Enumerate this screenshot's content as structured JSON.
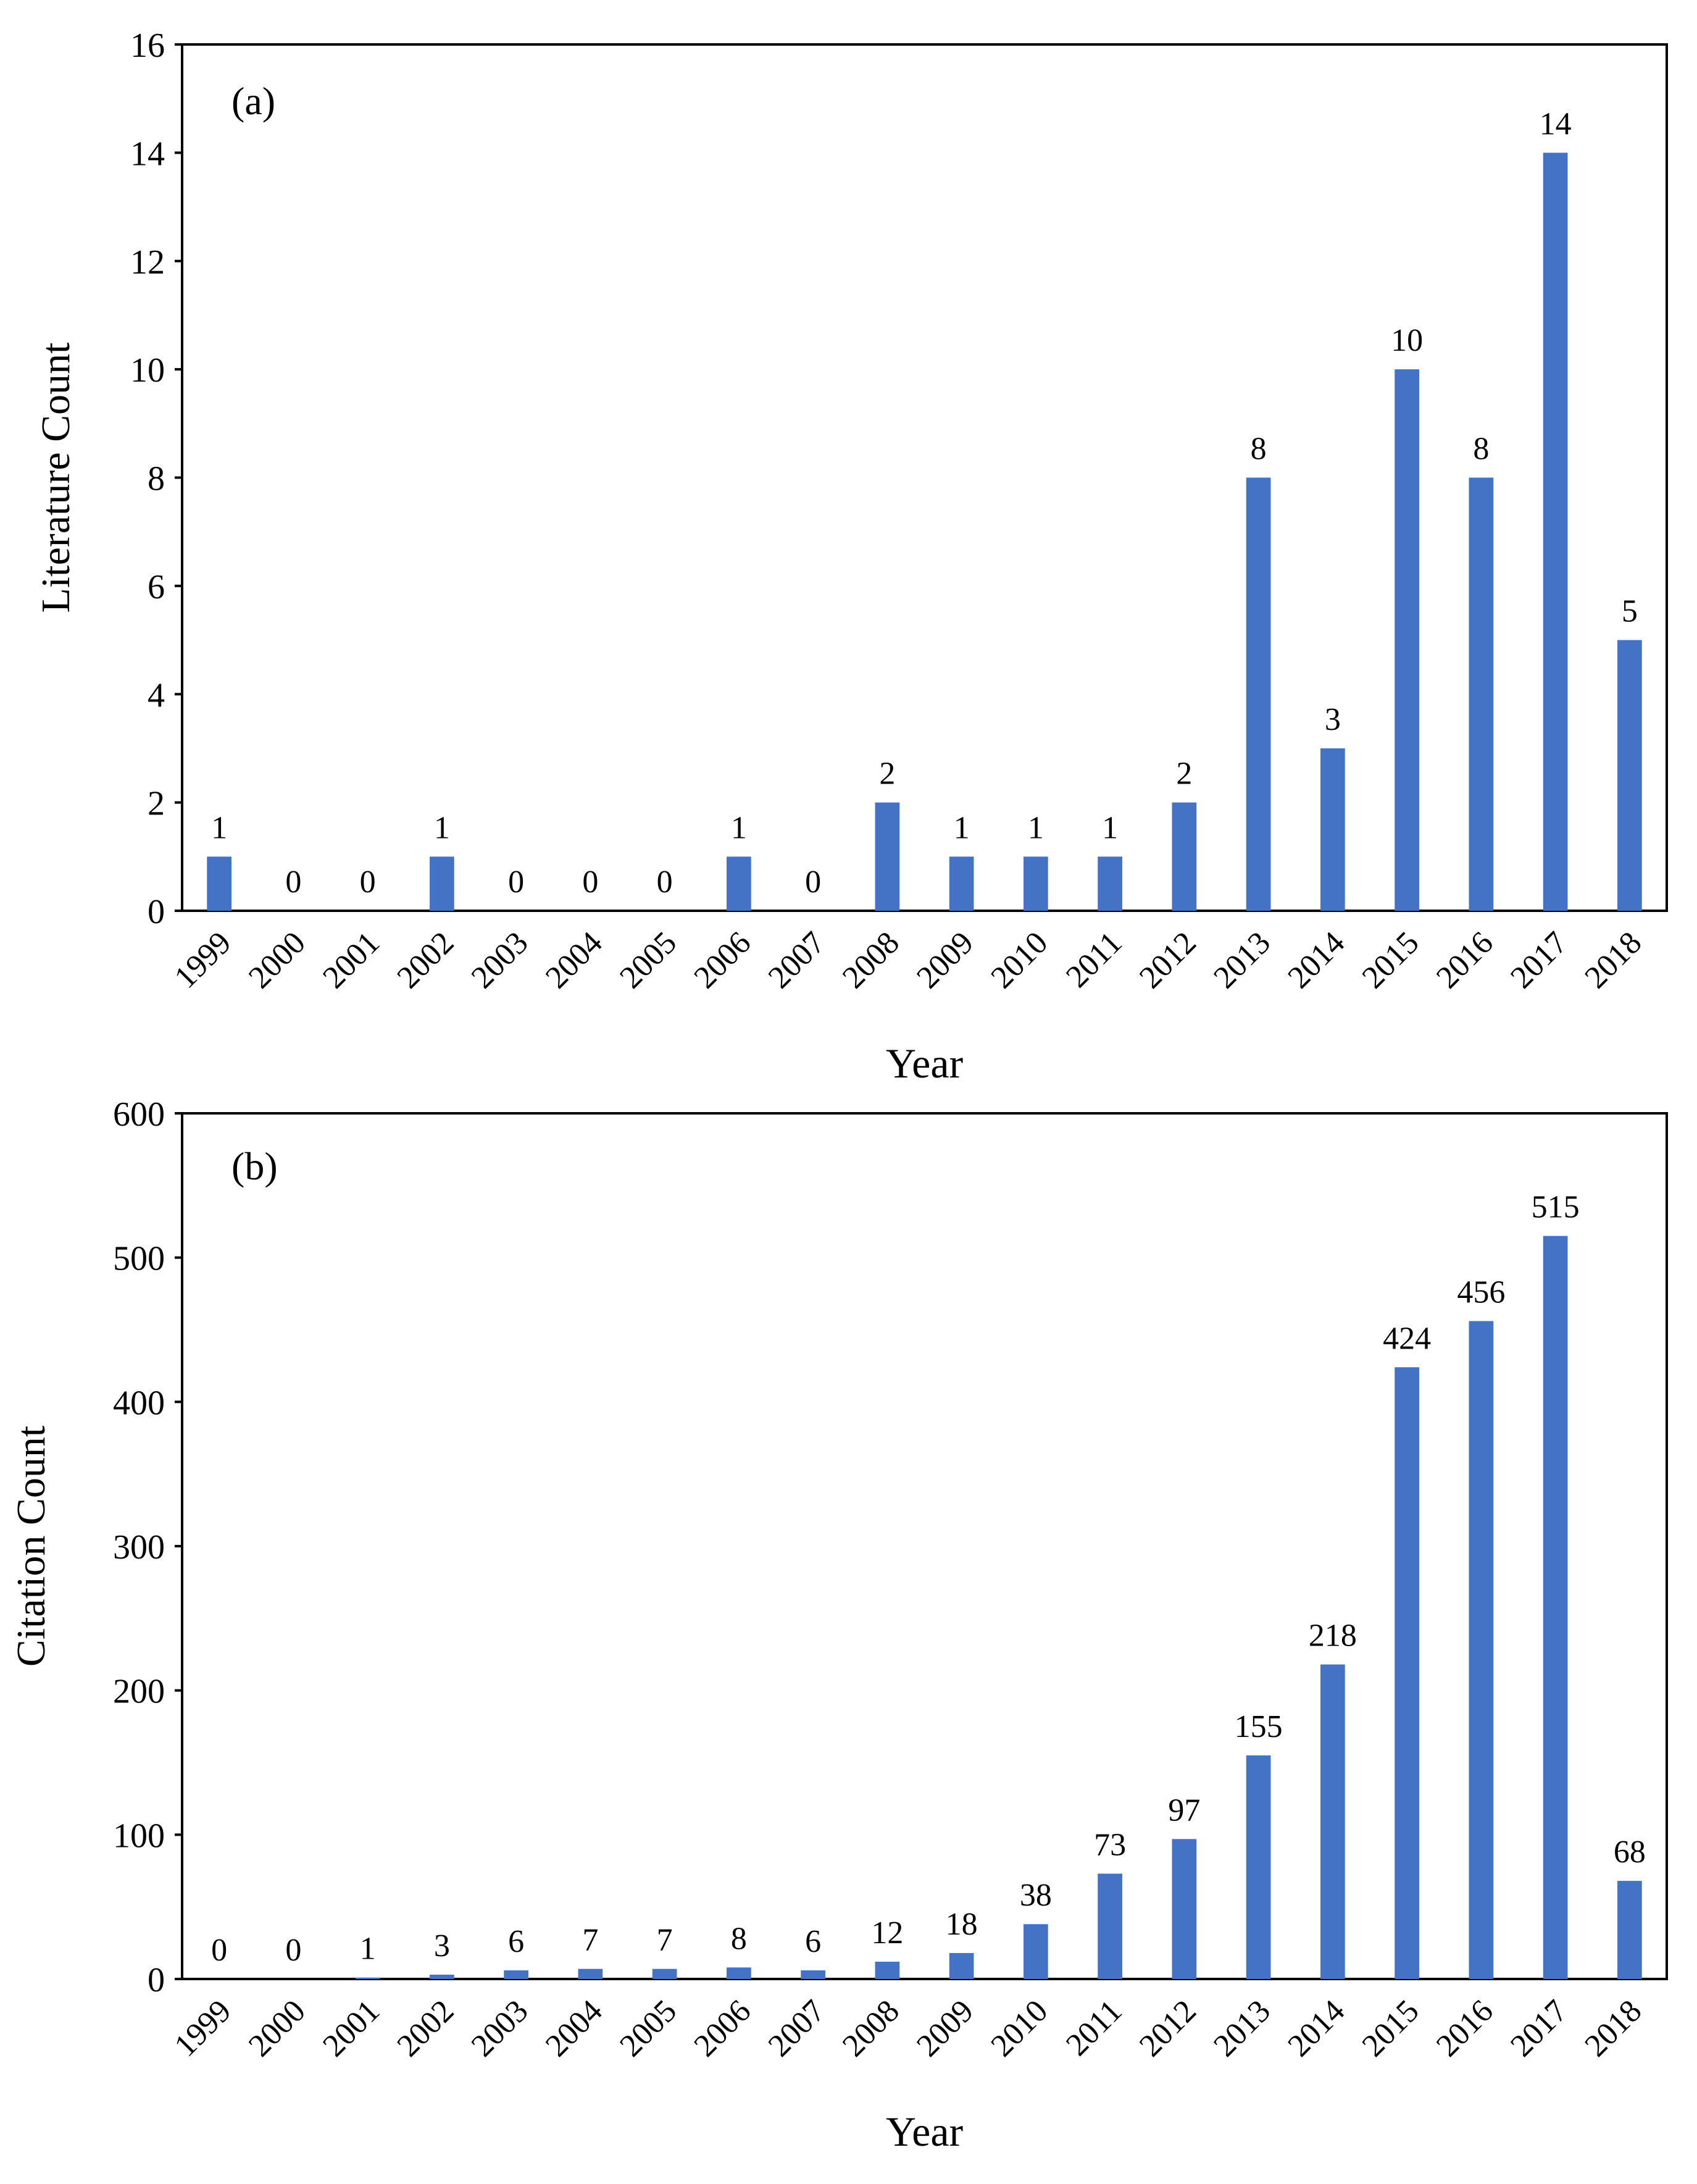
{
  "colors": {
    "bar": "#4472C4",
    "axis": "#000000",
    "background": "#ffffff"
  },
  "chart_data": [
    {
      "type": "bar",
      "panel_label": "(a)",
      "title": "",
      "xlabel": "Year",
      "ylabel": "Literature Count",
      "categories": [
        "1999",
        "2000",
        "2001",
        "2002",
        "2003",
        "2004",
        "2005",
        "2006",
        "2007",
        "2008",
        "2009",
        "2010",
        "2011",
        "2012",
        "2013",
        "2014",
        "2015",
        "2016",
        "2017",
        "2018"
      ],
      "values": [
        1,
        0,
        0,
        1,
        0,
        0,
        0,
        1,
        0,
        2,
        1,
        1,
        1,
        2,
        8,
        3,
        10,
        8,
        14,
        5
      ],
      "ylim": [
        0,
        16
      ],
      "yticks": [
        0,
        2,
        4,
        6,
        8,
        10,
        12,
        14,
        16
      ],
      "grid": false,
      "legend": "none",
      "data_labels": true
    },
    {
      "type": "bar",
      "panel_label": "(b)",
      "title": "",
      "xlabel": "Year",
      "ylabel": "Citation Count",
      "categories": [
        "1999",
        "2000",
        "2001",
        "2002",
        "2003",
        "2004",
        "2005",
        "2006",
        "2007",
        "2008",
        "2009",
        "2010",
        "2011",
        "2012",
        "2013",
        "2014",
        "2015",
        "2016",
        "2017",
        "2018"
      ],
      "values": [
        0,
        0,
        1,
        3,
        6,
        7,
        7,
        8,
        6,
        12,
        18,
        38,
        73,
        97,
        155,
        218,
        424,
        456,
        515,
        68
      ],
      "ylim": [
        0,
        600
      ],
      "yticks": [
        0,
        100,
        200,
        300,
        400,
        500,
        600
      ],
      "grid": false,
      "legend": "none",
      "data_labels": true
    }
  ]
}
